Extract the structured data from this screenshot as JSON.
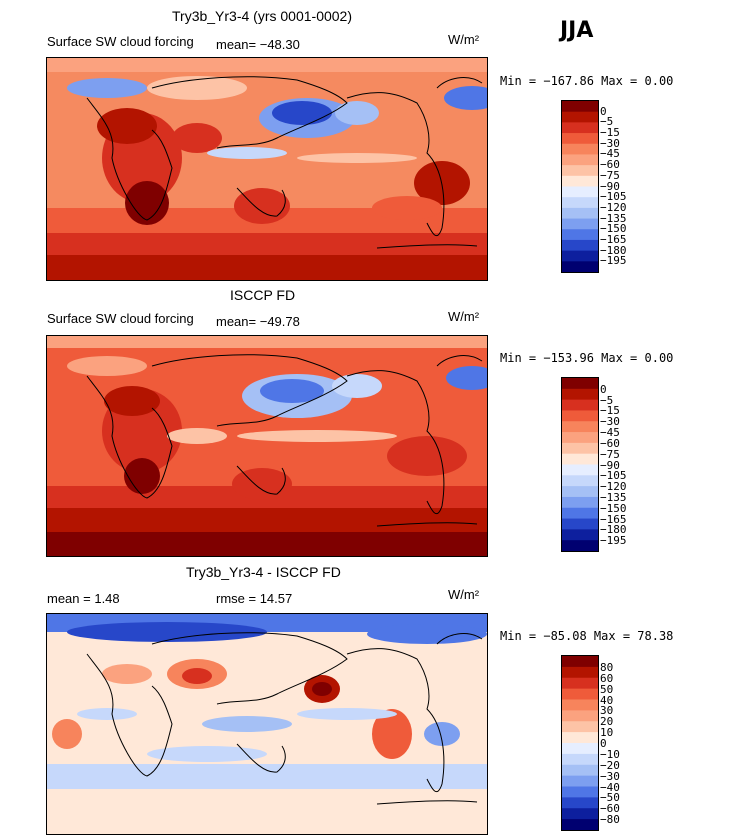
{
  "season": "JJA",
  "panels": [
    {
      "title": "Try3b_Yr3-4 (yrs 0001-0002)",
      "variable": "Surface SW cloud forcing",
      "mean_text": "mean= −48.30",
      "units": "W/m²",
      "min_max_text": "Min = −167.86 Max =    0.00",
      "levels": [
        "0",
        "−5",
        "−15",
        "−30",
        "−45",
        "−60",
        "−75",
        "−90",
        "−105",
        "−120",
        "−135",
        "−150",
        "−165",
        "−180",
        "−195"
      ],
      "colors": [
        "#7f0000",
        "#b31400",
        "#d7301f",
        "#ef5b3a",
        "#f7845c",
        "#fba27f",
        "#fdc3a6",
        "#ffe8d8",
        "#e6eeff",
        "#c6d8fb",
        "#a5c0f5",
        "#7d9ff0",
        "#4f76e6",
        "#2747c9",
        "#0d1f9e",
        "#000070"
      ]
    },
    {
      "title": "ISCCP FD",
      "variable": "Surface SW cloud forcing",
      "mean_text": "mean= −49.78",
      "units": "W/m²",
      "min_max_text": "Min = −153.96 Max =    0.00",
      "levels": [
        "0",
        "−5",
        "−15",
        "−30",
        "−45",
        "−60",
        "−75",
        "−90",
        "−105",
        "−120",
        "−135",
        "−150",
        "−165",
        "−180",
        "−195"
      ],
      "colors": [
        "#7f0000",
        "#b31400",
        "#d7301f",
        "#ef5b3a",
        "#f7845c",
        "#fba27f",
        "#fdc3a6",
        "#ffe8d8",
        "#e6eeff",
        "#c6d8fb",
        "#a5c0f5",
        "#7d9ff0",
        "#4f76e6",
        "#2747c9",
        "#0d1f9e",
        "#000070"
      ]
    },
    {
      "title": "Try3b_Yr3-4 - ISCCP FD",
      "mean_text": "mean =   1.48",
      "rmse_text": "rmse =  14.57",
      "units": "W/m²",
      "min_max_text": "Min = −85.08 Max =  78.38",
      "levels": [
        "80",
        "60",
        "50",
        "40",
        "30",
        "20",
        "10",
        "0",
        "−10",
        "−20",
        "−30",
        "−40",
        "−50",
        "−60",
        "−80"
      ],
      "colors": [
        "#7f0000",
        "#b31400",
        "#d7301f",
        "#ef5b3a",
        "#f7845c",
        "#fba27f",
        "#fdc3a6",
        "#ffe8d8",
        "#e6eeff",
        "#c6d8fb",
        "#a5c0f5",
        "#7d9ff0",
        "#4f76e6",
        "#2747c9",
        "#0d1f9e",
        "#000070"
      ]
    }
  ],
  "chart_data": [
    {
      "type": "heatmap",
      "title": "Try3b_Yr3-4 (yrs 0001-0002)",
      "subtitle": "Surface SW cloud forcing",
      "units": "W/m²",
      "mean": -48.3,
      "min": -167.86,
      "max": 0.0,
      "contour_levels": [
        0,
        -5,
        -15,
        -30,
        -45,
        -60,
        -75,
        -90,
        -105,
        -120,
        -135,
        -150,
        -165,
        -180,
        -195
      ]
    },
    {
      "type": "heatmap",
      "title": "ISCCP FD",
      "subtitle": "Surface SW cloud forcing",
      "units": "W/m²",
      "mean": -49.78,
      "min": -153.96,
      "max": 0.0,
      "contour_levels": [
        0,
        -5,
        -15,
        -30,
        -45,
        -60,
        -75,
        -90,
        -105,
        -120,
        -135,
        -150,
        -165,
        -180,
        -195
      ]
    },
    {
      "type": "heatmap",
      "title": "Try3b_Yr3-4 - ISCCP FD",
      "units": "W/m²",
      "mean": 1.48,
      "rmse": 14.57,
      "min": -85.08,
      "max": 78.38,
      "contour_levels": [
        80,
        60,
        50,
        40,
        30,
        20,
        10,
        0,
        -10,
        -20,
        -30,
        -40,
        -50,
        -60,
        -80
      ]
    }
  ]
}
